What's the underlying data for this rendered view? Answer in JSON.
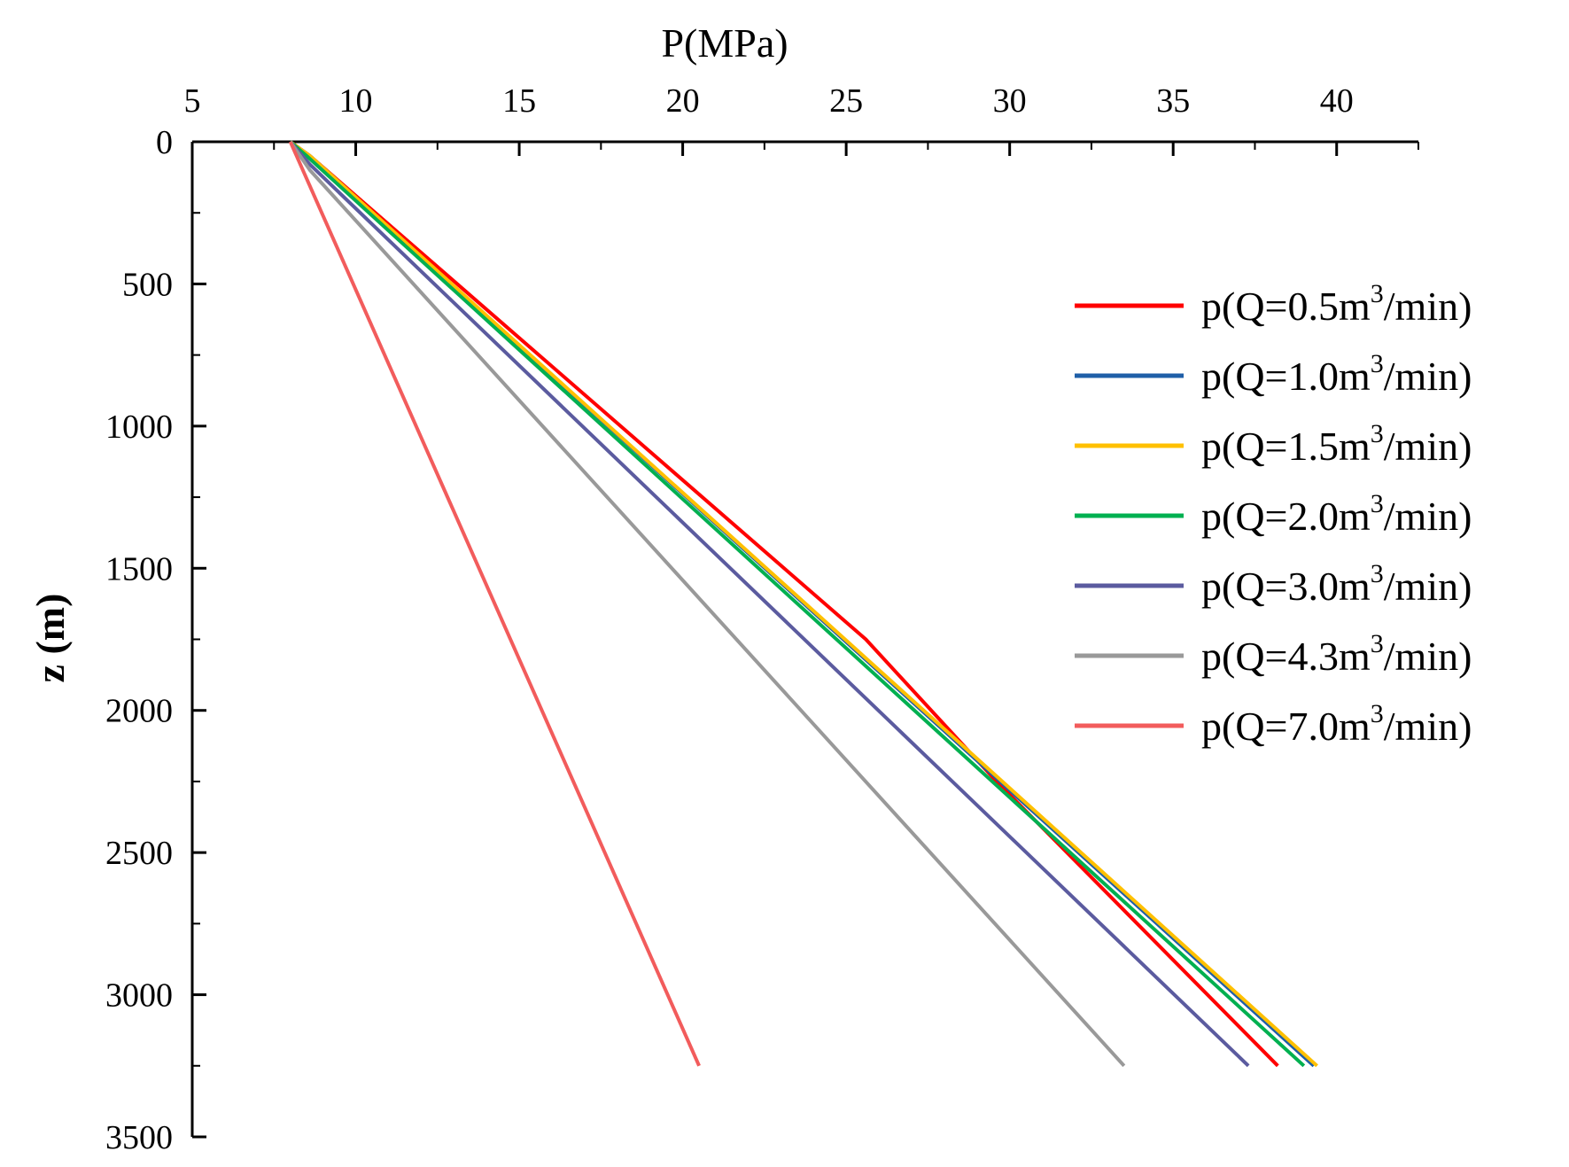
{
  "chart_data": {
    "type": "line",
    "title": "",
    "xlabel": "P(MPa)",
    "ylabel": "z (m)",
    "xlim": [
      5,
      42.5
    ],
    "ylim": [
      0,
      3500
    ],
    "x_axis_position": "top",
    "y_axis_inverted": true,
    "xticks": [
      "5",
      "10",
      "15",
      "20",
      "25",
      "30",
      "35",
      "40"
    ],
    "yticks": [
      "0",
      "500",
      "1000",
      "1500",
      "2000",
      "2500",
      "3000",
      "3500"
    ],
    "grid": false,
    "legend_position": "right",
    "series": [
      {
        "name": "p(Q=0.5m3/min)",
        "label_prefix": "p(Q=0.5m",
        "label_sup": "3",
        "label_suffix": "/min)",
        "color": "#ff0000",
        "points": [
          [
            8.0,
            0
          ],
          [
            8.6,
            50
          ],
          [
            25.6,
            1750
          ],
          [
            29.6,
            2250
          ],
          [
            38.2,
            3250
          ]
        ]
      },
      {
        "name": "p(Q=1.0m3/min)",
        "label_prefix": "p(Q=1.0m",
        "label_sup": "3",
        "label_suffix": "/min)",
        "color": "#1f5fa8",
        "points": [
          [
            8.0,
            0
          ],
          [
            8.6,
            50
          ],
          [
            39.3,
            3250
          ]
        ]
      },
      {
        "name": "p(Q=1.5m3/min)",
        "label_prefix": "p(Q=1.5m",
        "label_sup": "3",
        "label_suffix": "/min)",
        "color": "#ffc000",
        "points": [
          [
            8.0,
            0
          ],
          [
            8.6,
            50
          ],
          [
            39.4,
            3250
          ]
        ]
      },
      {
        "name": "p(Q=2.0m3/min)",
        "label_prefix": "p(Q=2.0m",
        "label_sup": "3",
        "label_suffix": "/min)",
        "color": "#00b050",
        "points": [
          [
            8.0,
            0
          ],
          [
            8.5,
            50
          ],
          [
            39.0,
            3250
          ]
        ]
      },
      {
        "name": "p(Q=3.0m3/min)",
        "label_prefix": "p(Q=3.0m",
        "label_sup": "3",
        "label_suffix": "/min)",
        "color": "#5b5b9f",
        "points": [
          [
            8.0,
            0
          ],
          [
            8.6,
            80
          ],
          [
            37.3,
            3250
          ]
        ]
      },
      {
        "name": "p(Q=4.3m3/min)",
        "label_prefix": "p(Q=4.3m",
        "label_sup": "3",
        "label_suffix": "/min)",
        "color": "#999999",
        "points": [
          [
            8.0,
            0
          ],
          [
            8.6,
            100
          ],
          [
            33.5,
            3250
          ]
        ]
      },
      {
        "name": "p(Q=7.0m3/min)",
        "label_prefix": "p(Q=7.0m",
        "label_sup": "3",
        "label_suffix": "/min)",
        "color": "#f25c5c",
        "points": [
          [
            8.0,
            0
          ],
          [
            20.5,
            3250
          ]
        ]
      }
    ]
  }
}
